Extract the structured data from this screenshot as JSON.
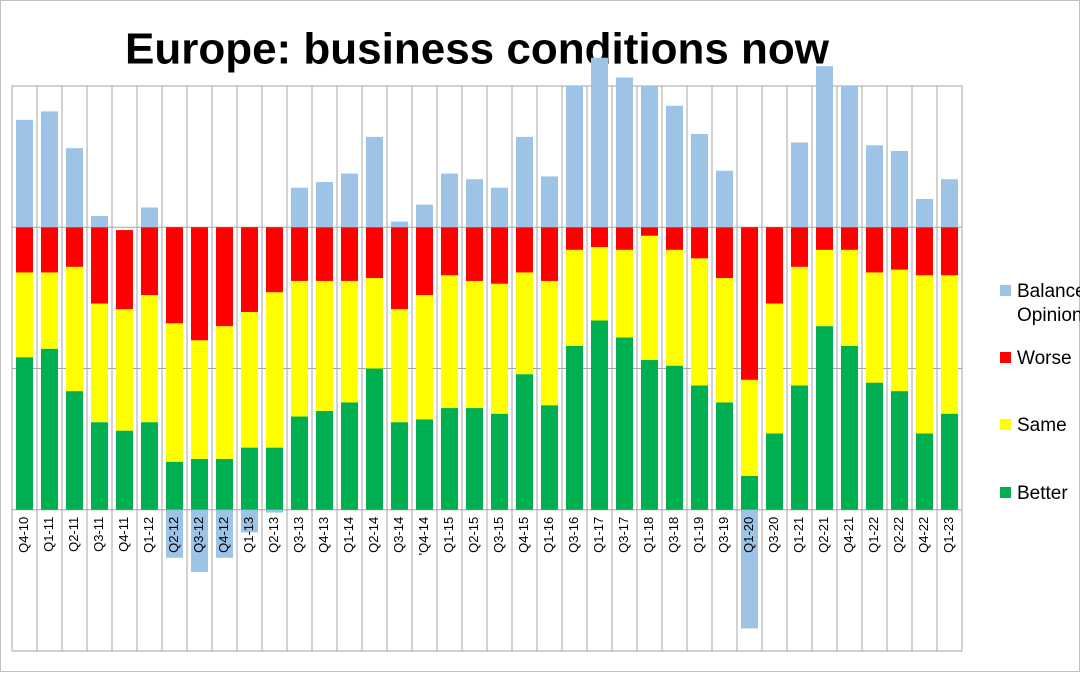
{
  "chart_data": {
    "type": "stacked_bar",
    "title": "Europe: business conditions now",
    "categories": [
      "Q4-10",
      "Q1-11",
      "Q2-11",
      "Q3-11",
      "Q4-11",
      "Q1-12",
      "Q2-12",
      "Q3-12",
      "Q4-12",
      "Q1-13",
      "Q2-13",
      "Q3-13",
      "Q4-13",
      "Q1-14",
      "Q2-14",
      "Q3-14",
      "'Q4-14",
      "Q1-15",
      "Q2-15",
      "Q3-15",
      "Q4-15",
      "Q1-16",
      "Q3-16",
      "Q1-17",
      "Q3-17",
      "Q1-18",
      "Q3-18",
      "Q1-19",
      "Q3-19",
      "Q1-20",
      "Q3-20",
      "Q1-21",
      "Q2-21",
      "Q4-21",
      "Q1-22",
      "Q2-22",
      "Q4-22",
      "Q1-23"
    ],
    "series": [
      {
        "name": "Better",
        "color": "#00b050",
        "values": [
          54,
          57,
          42,
          31,
          28,
          31,
          17,
          18,
          18,
          22,
          22,
          33,
          35,
          38,
          50,
          31,
          32,
          36,
          36,
          34,
          48,
          37,
          58,
          67,
          61,
          53,
          51,
          44,
          38,
          12,
          27,
          44,
          65,
          58,
          45,
          42,
          27,
          34
        ]
      },
      {
        "name": "Same",
        "color": "#ffff00",
        "values": [
          30,
          27,
          44,
          42,
          43,
          45,
          49,
          42,
          47,
          48,
          55,
          48,
          46,
          43,
          32,
          40,
          44,
          47,
          45,
          46,
          36,
          44,
          34,
          26,
          31,
          44,
          41,
          45,
          44,
          34,
          46,
          42,
          27,
          34,
          39,
          43,
          56,
          49
        ]
      },
      {
        "name": "Worse",
        "color": "#ff0000",
        "values": [
          16,
          16,
          14,
          27,
          28,
          24,
          34,
          40,
          35,
          30,
          23,
          19,
          19,
          19,
          18,
          29,
          24,
          17,
          19,
          20,
          16,
          19,
          8,
          7,
          8,
          3,
          8,
          11,
          18,
          54,
          27,
          14,
          8,
          8,
          16,
          15,
          17,
          17
        ]
      },
      {
        "name": "Balance of Opinion",
        "color": "#9dc3e6",
        "values": [
          38,
          41,
          28,
          4,
          0,
          7,
          -17,
          -22,
          -17,
          -8,
          -1,
          14,
          16,
          19,
          32,
          2,
          8,
          19,
          17,
          14,
          32,
          18,
          50,
          60,
          53,
          50,
          43,
          33,
          20,
          -42,
          0,
          30,
          57,
          50,
          29,
          27,
          10,
          17
        ]
      }
    ],
    "ylim": [
      -50,
      150
    ],
    "yticks": [
      -50,
      0,
      50,
      100,
      150
    ],
    "grid": true,
    "legend": "right"
  }
}
